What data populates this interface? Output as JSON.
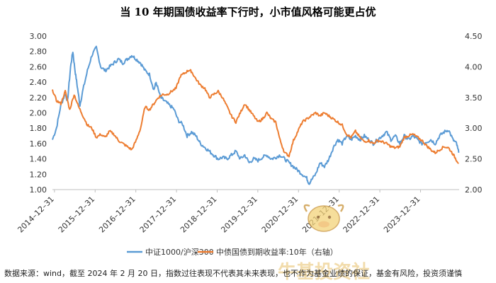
{
  "page": {
    "footer_text": "数据来源：wind，截至 2024 年 2 月 20 日，指数过往表现不代表其未来表现，也不作为基金业绩的保证，基金有风险，投资须谨慎",
    "watermark": {
      "text": "牛基投资社",
      "color": "#e8c06a"
    }
  },
  "chart_data": {
    "type": "line",
    "title": "当 10 年期国债收益率下行时，小市值风格可能更占优",
    "x_tick_labels": [
      "2014–12–31",
      "2015–12–31",
      "2016–12–31",
      "2017–12–31",
      "2018–12–31",
      "2019–12–31",
      "2020–12–31",
      "2021–12–31",
      "2022–12–31",
      "2023–12–31"
    ],
    "x_range": [
      2014.96,
      2024.14
    ],
    "y_left": {
      "min": 1.0,
      "max": 3.0,
      "step": 0.2,
      "decimals": 2
    },
    "y_right": {
      "min": 2.0,
      "max": 4.5,
      "step": 0.5,
      "decimals": 2
    },
    "series": [
      {
        "name": "中证1000/沪深300",
        "axis": "left",
        "color": "#5b9bd5",
        "points": [
          [
            2014.96,
            1.65
          ],
          [
            2015.05,
            1.8
          ],
          [
            2015.15,
            2.1
          ],
          [
            2015.25,
            2.25
          ],
          [
            2015.3,
            2.15
          ],
          [
            2015.37,
            2.6
          ],
          [
            2015.42,
            2.8
          ],
          [
            2015.47,
            2.55
          ],
          [
            2015.52,
            2.35
          ],
          [
            2015.58,
            2.1
          ],
          [
            2015.65,
            2.3
          ],
          [
            2015.75,
            2.55
          ],
          [
            2015.85,
            2.75
          ],
          [
            2015.95,
            2.85
          ],
          [
            2016.05,
            2.6
          ],
          [
            2016.15,
            2.55
          ],
          [
            2016.25,
            2.6
          ],
          [
            2016.35,
            2.65
          ],
          [
            2016.45,
            2.7
          ],
          [
            2016.55,
            2.65
          ],
          [
            2016.65,
            2.7
          ],
          [
            2016.75,
            2.75
          ],
          [
            2016.85,
            2.7
          ],
          [
            2016.95,
            2.65
          ],
          [
            2017.05,
            2.55
          ],
          [
            2017.15,
            2.5
          ],
          [
            2017.25,
            2.3
          ],
          [
            2017.3,
            2.4
          ],
          [
            2017.4,
            2.2
          ],
          [
            2017.5,
            2.15
          ],
          [
            2017.6,
            2.1
          ],
          [
            2017.7,
            2.05
          ],
          [
            2017.8,
            1.9
          ],
          [
            2017.9,
            1.85
          ],
          [
            2018.0,
            1.7
          ],
          [
            2018.1,
            1.75
          ],
          [
            2018.2,
            1.7
          ],
          [
            2018.3,
            1.6
          ],
          [
            2018.4,
            1.55
          ],
          [
            2018.5,
            1.5
          ],
          [
            2018.6,
            1.45
          ],
          [
            2018.7,
            1.4
          ],
          [
            2018.8,
            1.42
          ],
          [
            2018.9,
            1.4
          ],
          [
            2019.0,
            1.45
          ],
          [
            2019.1,
            1.5
          ],
          [
            2019.2,
            1.4
          ],
          [
            2019.3,
            1.45
          ],
          [
            2019.4,
            1.35
          ],
          [
            2019.5,
            1.4
          ],
          [
            2019.6,
            1.38
          ],
          [
            2019.7,
            1.42
          ],
          [
            2019.8,
            1.45
          ],
          [
            2019.9,
            1.4
          ],
          [
            2020.0,
            1.42
          ],
          [
            2020.1,
            1.45
          ],
          [
            2020.2,
            1.4
          ],
          [
            2020.3,
            1.35
          ],
          [
            2020.4,
            1.3
          ],
          [
            2020.5,
            1.25
          ],
          [
            2020.6,
            1.2
          ],
          [
            2020.7,
            1.15
          ],
          [
            2020.75,
            1.08
          ],
          [
            2020.8,
            1.12
          ],
          [
            2020.9,
            1.2
          ],
          [
            2021.0,
            1.35
          ],
          [
            2021.1,
            1.3
          ],
          [
            2021.2,
            1.4
          ],
          [
            2021.3,
            1.55
          ],
          [
            2021.4,
            1.65
          ],
          [
            2021.5,
            1.6
          ],
          [
            2021.6,
            1.7
          ],
          [
            2021.7,
            1.65
          ],
          [
            2021.8,
            1.7
          ],
          [
            2021.9,
            1.65
          ],
          [
            2022.0,
            1.7
          ],
          [
            2022.1,
            1.65
          ],
          [
            2022.2,
            1.6
          ],
          [
            2022.3,
            1.65
          ],
          [
            2022.4,
            1.7
          ],
          [
            2022.5,
            1.75
          ],
          [
            2022.6,
            1.65
          ],
          [
            2022.7,
            1.7
          ],
          [
            2022.8,
            1.6
          ],
          [
            2022.9,
            1.7
          ],
          [
            2023.0,
            1.65
          ],
          [
            2023.1,
            1.7
          ],
          [
            2023.2,
            1.65
          ],
          [
            2023.3,
            1.6
          ],
          [
            2023.4,
            1.62
          ],
          [
            2023.5,
            1.65
          ],
          [
            2023.6,
            1.6
          ],
          [
            2023.7,
            1.7
          ],
          [
            2023.8,
            1.75
          ],
          [
            2023.9,
            1.78
          ],
          [
            2024.0,
            1.65
          ],
          [
            2024.08,
            1.6
          ],
          [
            2024.13,
            1.48
          ]
        ]
      },
      {
        "name": "中债国债到期收益率:10年（右轴）",
        "axis": "right",
        "color": "#ed7d31",
        "points": [
          [
            2014.96,
            3.63
          ],
          [
            2015.05,
            3.45
          ],
          [
            2015.15,
            3.4
          ],
          [
            2015.25,
            3.6
          ],
          [
            2015.35,
            3.3
          ],
          [
            2015.45,
            3.55
          ],
          [
            2015.55,
            3.35
          ],
          [
            2015.65,
            3.2
          ],
          [
            2015.75,
            3.05
          ],
          [
            2015.85,
            3.0
          ],
          [
            2015.95,
            2.85
          ],
          [
            2016.05,
            2.9
          ],
          [
            2016.15,
            2.85
          ],
          [
            2016.25,
            2.95
          ],
          [
            2016.35,
            2.9
          ],
          [
            2016.45,
            2.8
          ],
          [
            2016.55,
            2.75
          ],
          [
            2016.65,
            2.7
          ],
          [
            2016.75,
            2.65
          ],
          [
            2016.85,
            2.8
          ],
          [
            2016.95,
            3.0
          ],
          [
            2017.05,
            3.35
          ],
          [
            2017.15,
            3.3
          ],
          [
            2017.25,
            3.4
          ],
          [
            2017.35,
            3.5
          ],
          [
            2017.45,
            3.55
          ],
          [
            2017.55,
            3.55
          ],
          [
            2017.65,
            3.6
          ],
          [
            2017.75,
            3.65
          ],
          [
            2017.85,
            3.85
          ],
          [
            2017.95,
            3.9
          ],
          [
            2018.05,
            3.95
          ],
          [
            2018.1,
            3.92
          ],
          [
            2018.2,
            3.8
          ],
          [
            2018.3,
            3.7
          ],
          [
            2018.4,
            3.65
          ],
          [
            2018.5,
            3.5
          ],
          [
            2018.6,
            3.55
          ],
          [
            2018.7,
            3.6
          ],
          [
            2018.8,
            3.5
          ],
          [
            2018.9,
            3.35
          ],
          [
            2019.0,
            3.2
          ],
          [
            2019.1,
            3.1
          ],
          [
            2019.2,
            3.25
          ],
          [
            2019.3,
            3.4
          ],
          [
            2019.4,
            3.3
          ],
          [
            2019.5,
            3.2
          ],
          [
            2019.6,
            3.1
          ],
          [
            2019.7,
            3.15
          ],
          [
            2019.8,
            3.25
          ],
          [
            2019.9,
            3.15
          ],
          [
            2020.0,
            3.1
          ],
          [
            2020.1,
            2.8
          ],
          [
            2020.2,
            2.6
          ],
          [
            2020.3,
            2.55
          ],
          [
            2020.4,
            2.8
          ],
          [
            2020.5,
            2.95
          ],
          [
            2020.6,
            3.1
          ],
          [
            2020.7,
            3.15
          ],
          [
            2020.8,
            3.2
          ],
          [
            2020.9,
            3.25
          ],
          [
            2021.0,
            3.2
          ],
          [
            2021.1,
            3.25
          ],
          [
            2021.2,
            3.2
          ],
          [
            2021.3,
            3.15
          ],
          [
            2021.4,
            3.1
          ],
          [
            2021.5,
            3.05
          ],
          [
            2021.6,
            2.9
          ],
          [
            2021.7,
            2.85
          ],
          [
            2021.8,
            2.95
          ],
          [
            2021.9,
            2.85
          ],
          [
            2022.0,
            2.78
          ],
          [
            2022.1,
            2.8
          ],
          [
            2022.2,
            2.75
          ],
          [
            2022.3,
            2.8
          ],
          [
            2022.4,
            2.78
          ],
          [
            2022.5,
            2.75
          ],
          [
            2022.6,
            2.7
          ],
          [
            2022.7,
            2.68
          ],
          [
            2022.8,
            2.7
          ],
          [
            2022.9,
            2.85
          ],
          [
            2023.0,
            2.88
          ],
          [
            2023.1,
            2.9
          ],
          [
            2023.2,
            2.85
          ],
          [
            2023.3,
            2.8
          ],
          [
            2023.4,
            2.72
          ],
          [
            2023.5,
            2.65
          ],
          [
            2023.6,
            2.6
          ],
          [
            2023.7,
            2.65
          ],
          [
            2023.8,
            2.7
          ],
          [
            2023.9,
            2.68
          ],
          [
            2024.0,
            2.58
          ],
          [
            2024.08,
            2.48
          ],
          [
            2024.13,
            2.43
          ]
        ]
      }
    ],
    "legend_position": "bottom-center",
    "grid": false
  }
}
